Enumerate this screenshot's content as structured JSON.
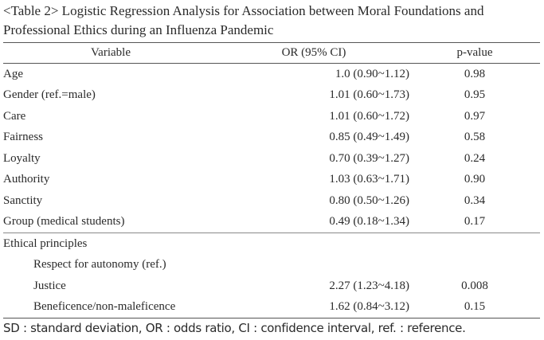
{
  "caption": {
    "line1": "<Table 2> Logistic Regression Analysis for Association between Moral Foundations and",
    "line2": "Professional Ethics during an Influenza Pandemic"
  },
  "headers": {
    "variable": "Variable",
    "or": "OR (95% CI)",
    "p": "p-value"
  },
  "rows": [
    {
      "variable": "Age",
      "or": "1.0 (0.90~1.12)",
      "p": "0.98"
    },
    {
      "variable": "Gender (ref.=male)",
      "or": "1.01 (0.60~1.73)",
      "p": "0.95"
    },
    {
      "variable": "Care",
      "or": "1.01 (0.60~1.72)",
      "p": "0.97"
    },
    {
      "variable": "Fairness",
      "or": "0.85 (0.49~1.49)",
      "p": "0.58"
    },
    {
      "variable": "Loyalty",
      "or": "0.70 (0.39~1.27)",
      "p": "0.24"
    },
    {
      "variable": "Authority",
      "or": "1.03 (0.63~1.71)",
      "p": "0.90"
    },
    {
      "variable": "Sanctity",
      "or": "0.80 (0.50~1.26)",
      "p": "0.34"
    },
    {
      "variable": "Group (medical students)",
      "or": "0.49 (0.18~1.34)",
      "p": "0.17"
    },
    {
      "variable": "Ethical principles",
      "or": "",
      "p": ""
    },
    {
      "variable": "Respect for autonomy (ref.)",
      "or": "",
      "p": ""
    },
    {
      "variable": "Justice",
      "or": "2.27 (1.23~4.18)",
      "p": "0.008"
    },
    {
      "variable": "Beneficence/non-maleficence",
      "or": "1.62 (0.84~3.12)",
      "p": "0.15"
    }
  ],
  "footnote": "SD : standard deviation, OR : odds ratio, CI : confidence interval, ref. : reference."
}
